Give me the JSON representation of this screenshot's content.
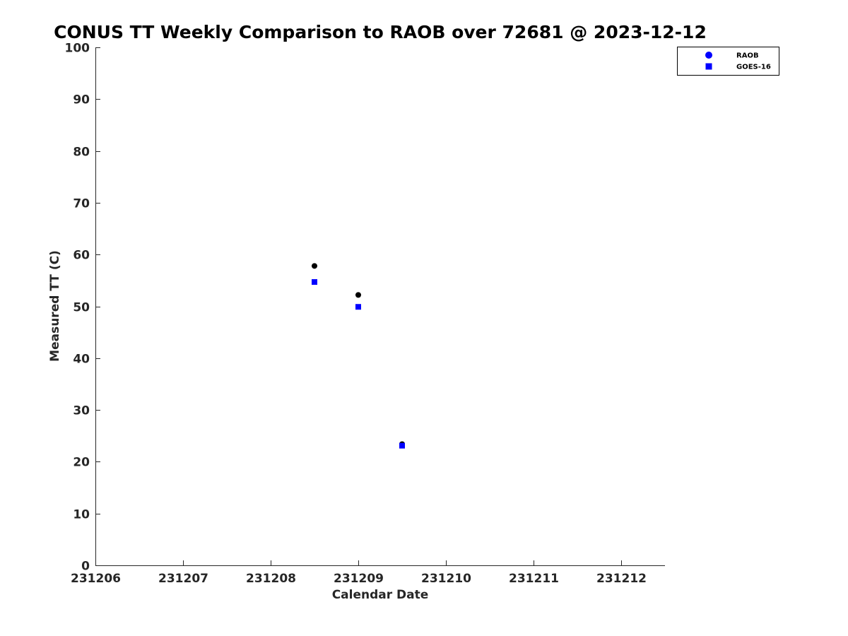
{
  "chart_data": {
    "type": "scatter",
    "title": "CONUS TT Weekly Comparison to RAOB over 72681 @ 2023-12-12",
    "xlabel": "Calendar Date",
    "ylabel": "Measured TT (C)",
    "xlim": [
      231206,
      231212.5
    ],
    "ylim": [
      0,
      100
    ],
    "x_ticks": [
      231206,
      231207,
      231208,
      231209,
      231210,
      231211,
      231212
    ],
    "x_tick_labels": [
      "231206",
      "231207",
      "231208",
      "231209",
      "231210",
      "231211",
      "231212"
    ],
    "y_ticks": [
      0,
      10,
      20,
      30,
      40,
      50,
      60,
      70,
      80,
      90,
      100
    ],
    "y_tick_labels": [
      "0",
      "10",
      "20",
      "30",
      "40",
      "50",
      "60",
      "70",
      "80",
      "90",
      "100"
    ],
    "legend_position": "top-right",
    "series": [
      {
        "name": "RAOB",
        "marker": "circle",
        "color": "#000000",
        "legend_color": "#0000ff",
        "x": [
          231208.5,
          231209.0,
          231209.5
        ],
        "y": [
          57.8,
          52.2,
          23.4
        ]
      },
      {
        "name": "GOES-16",
        "marker": "square",
        "color": "#0000ff",
        "legend_color": "#0000ff",
        "x": [
          231208.5,
          231209.0,
          231209.5
        ],
        "y": [
          54.7,
          49.9,
          23.1
        ]
      }
    ]
  }
}
